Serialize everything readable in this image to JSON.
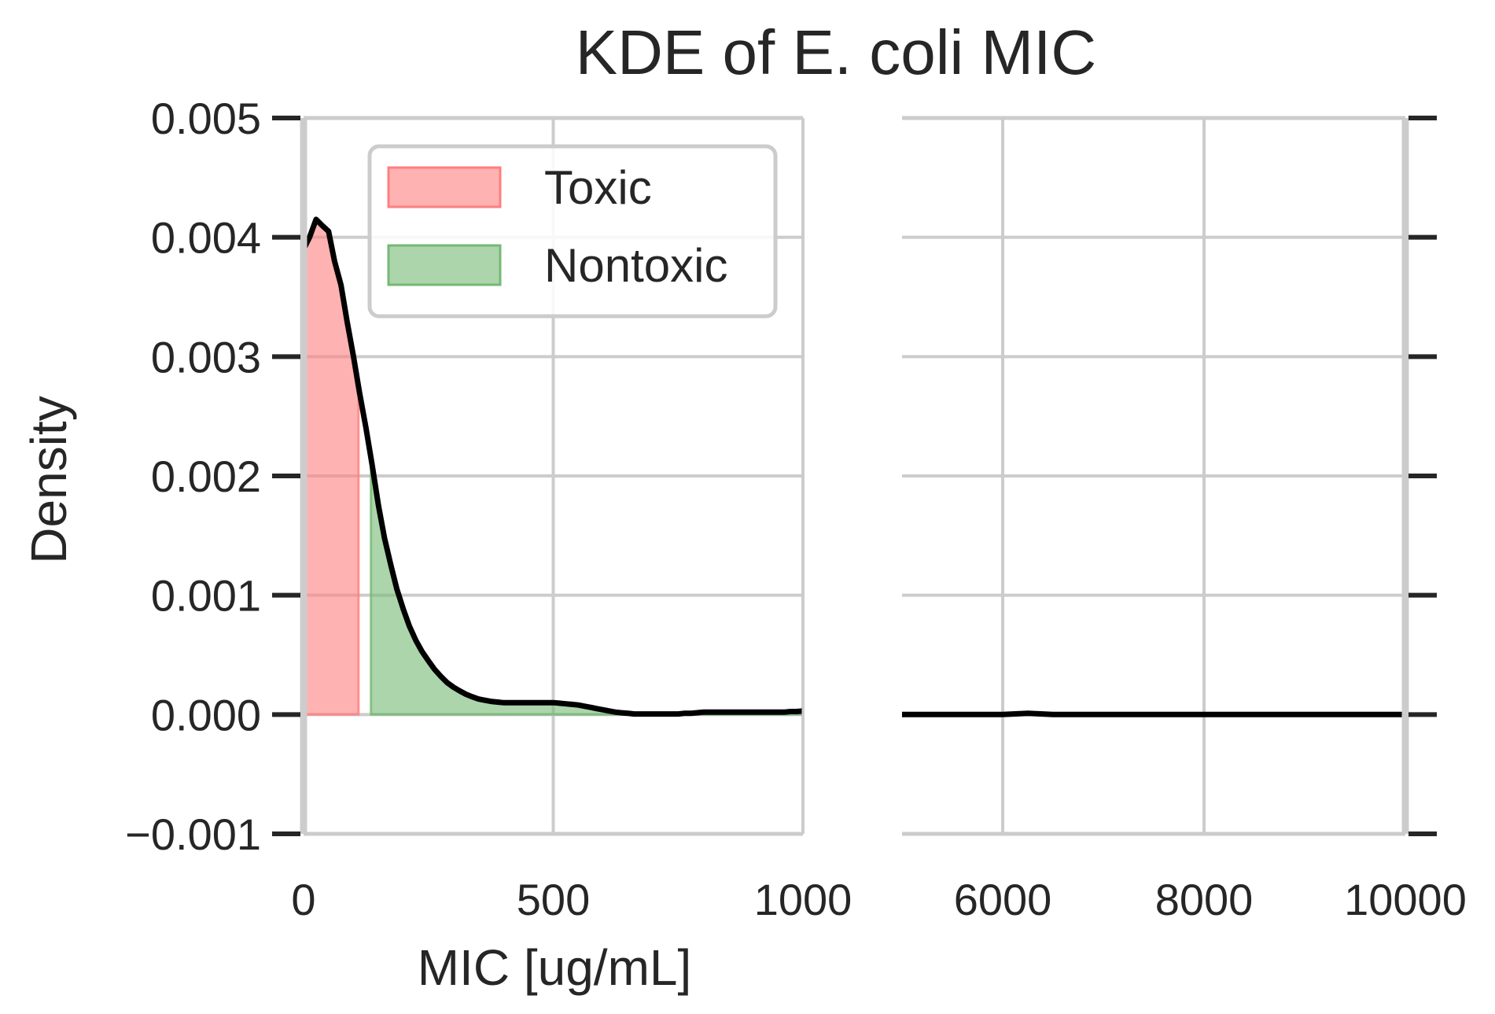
{
  "chart_data": {
    "type": "area",
    "title": "KDE of E. coli MIC",
    "xlabel": "MIC [ug/mL]",
    "ylabel": "Density",
    "ylim": [
      -0.001,
      0.005
    ],
    "y_ticks": [
      "0.005",
      "0.004",
      "0.003",
      "0.002",
      "0.001",
      "0.000",
      "−0.001"
    ],
    "y_tick_values": [
      0.005,
      0.004,
      0.003,
      0.002,
      0.001,
      0.0,
      -0.001
    ],
    "grid": true,
    "legend_position": "top-right of left panel",
    "panels": [
      {
        "xlim": [
          0,
          1000
        ],
        "x_ticks": [
          "0",
          "500",
          "1000"
        ],
        "x_tick_values": [
          0,
          500,
          1000
        ]
      },
      {
        "xlim": [
          5000,
          10000
        ],
        "x_ticks": [
          "6000",
          "8000",
          "10000"
        ],
        "x_tick_values": [
          6000,
          8000,
          10000
        ]
      }
    ],
    "series": [
      {
        "name": "Toxic",
        "color": "#ff7f7f",
        "fill_range": [
          0,
          110
        ]
      },
      {
        "name": "Nontoxic",
        "color": "#74b974",
        "fill_range": [
          135,
          1000
        ]
      },
      {
        "role": "kde-curve",
        "color": "#000000",
        "x": [
          0,
          12,
          25,
          37,
          50,
          62,
          75,
          87,
          100,
          112,
          125,
          137,
          150,
          162,
          175,
          187,
          200,
          212,
          225,
          237,
          250,
          262,
          275,
          287,
          300,
          312,
          325,
          337,
          350,
          362,
          375,
          387,
          400,
          412,
          425,
          437,
          450,
          462,
          475,
          487,
          500,
          512,
          525,
          537,
          550,
          562,
          575,
          587,
          600,
          612,
          625,
          637,
          650,
          662,
          675,
          687,
          700,
          712,
          725,
          737,
          750,
          762,
          775,
          787,
          800,
          812,
          825,
          837,
          850,
          862,
          875,
          887,
          900,
          912,
          925,
          937,
          950,
          962,
          975,
          987,
          1000
        ],
        "y": [
          0.0039,
          0.004,
          0.00415,
          0.0041,
          0.00405,
          0.0038,
          0.0036,
          0.0033,
          0.003,
          0.0027,
          0.0024,
          0.0021,
          0.00175,
          0.00148,
          0.00125,
          0.00105,
          0.00088,
          0.00074,
          0.00062,
          0.00053,
          0.00045,
          0.00038,
          0.00032,
          0.00027,
          0.00023,
          0.0002,
          0.00017,
          0.00015,
          0.00013,
          0.00012,
          0.00011,
          0.000105,
          0.0001,
          0.0001,
          0.0001,
          0.0001,
          0.0001,
          0.0001,
          0.0001,
          0.0001,
          0.0001,
          9.5e-05,
          9e-05,
          8.5e-05,
          8e-05,
          7e-05,
          6e-05,
          5e-05,
          4e-05,
          3e-05,
          2e-05,
          1.5e-05,
          1e-05,
          5e-06,
          5e-06,
          5e-06,
          5e-06,
          5e-06,
          5e-06,
          5e-06,
          5e-06,
          1e-05,
          1e-05,
          1.5e-05,
          2e-05,
          2e-05,
          2e-05,
          2e-05,
          2e-05,
          2e-05,
          2e-05,
          2e-05,
          2e-05,
          2e-05,
          2e-05,
          2e-05,
          2e-05,
          2e-05,
          2.5e-05,
          2.5e-05,
          3e-05
        ]
      },
      {
        "role": "kde-curve-tail",
        "color": "#000000",
        "x": [
          5000,
          5500,
          6000,
          6250,
          6500,
          7000,
          7500,
          8000,
          8500,
          9000,
          9500,
          10000
        ],
        "y": [
          0.0,
          0.0,
          0.0,
          1e-05,
          0.0,
          0.0,
          0.0,
          0.0,
          0.0,
          0.0,
          0.0,
          0.0
        ]
      }
    ],
    "legend": [
      {
        "label": "Toxic",
        "color": "#ff7f7f"
      },
      {
        "label": "Nontoxic",
        "color": "#74b974"
      }
    ]
  }
}
